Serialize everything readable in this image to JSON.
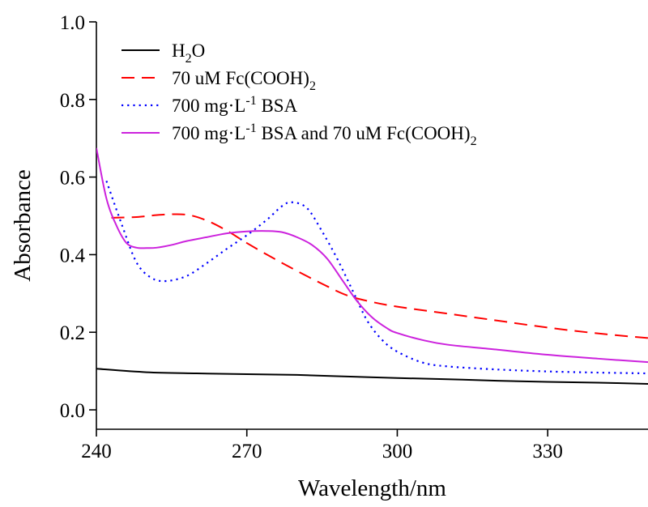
{
  "chart_data": {
    "type": "line",
    "title": "",
    "xlabel": "Wavelength/nm",
    "ylabel": "Absorbance",
    "xlim": [
      240,
      350
    ],
    "ylim": [
      -0.05,
      1.0
    ],
    "xticks": [
      "240",
      "270",
      "300",
      "330"
    ],
    "yticks": [
      "0.0",
      "0.2",
      "0.4",
      "0.6",
      "0.8",
      "1.0"
    ],
    "grid": false,
    "legend_position": "top-left",
    "series": [
      {
        "name": "H2O",
        "legend": {
          "pre": "H",
          "sub": "2",
          "post": "O"
        },
        "color": "#000000",
        "dash": "solid",
        "x": [
          240,
          250,
          260,
          270,
          280,
          290,
          300,
          310,
          320,
          330,
          340,
          350
        ],
        "y": [
          0.106,
          0.097,
          0.094,
          0.092,
          0.09,
          0.086,
          0.082,
          0.079,
          0.075,
          0.072,
          0.07,
          0.067
        ]
      },
      {
        "name": "70 uM Fc(COOH)2",
        "legend": {
          "pre": "70 uM Fc(COOH)",
          "sub": "2",
          "post": ""
        },
        "color": "#ff0000",
        "dash": "dashed",
        "x": [
          243,
          248,
          253,
          258,
          262,
          266,
          270,
          275,
          280,
          285,
          290,
          295,
          300,
          310,
          320,
          330,
          340,
          350
        ],
        "y": [
          0.495,
          0.497,
          0.503,
          0.503,
          0.488,
          0.462,
          0.43,
          0.393,
          0.358,
          0.325,
          0.295,
          0.278,
          0.266,
          0.248,
          0.23,
          0.212,
          0.197,
          0.185
        ]
      },
      {
        "name": "700 mg·L-1 BSA",
        "legend": {
          "pre": "700 mg·L",
          "sup": "-1",
          "post": " BSA"
        },
        "color": "#0000ff",
        "dash": "dotted",
        "x": [
          242,
          245,
          248,
          251,
          254,
          258,
          262,
          266,
          270,
          274,
          277,
          279,
          282,
          285,
          288,
          291,
          294,
          297,
          300,
          305,
          310,
          320,
          330,
          340,
          350
        ],
        "y": [
          0.59,
          0.48,
          0.38,
          0.34,
          0.332,
          0.345,
          0.378,
          0.415,
          0.45,
          0.49,
          0.525,
          0.535,
          0.52,
          0.46,
          0.39,
          0.31,
          0.23,
          0.18,
          0.15,
          0.122,
          0.112,
          0.104,
          0.099,
          0.096,
          0.094
        ]
      },
      {
        "name": "700 mg·L-1 BSA and 70 uM Fc(COOH)2",
        "legend": {
          "pre": "700 mg·L",
          "sup": "-1",
          "mid": " BSA and 70 uM Fc(COOH)",
          "sub": "2",
          "post": ""
        },
        "color": "#cc22dd",
        "dash": "solid",
        "x": [
          240,
          242,
          244,
          246,
          248,
          250,
          252,
          255,
          258,
          262,
          266,
          270,
          274,
          277,
          280,
          283,
          286,
          289,
          292,
          295,
          298,
          300,
          305,
          310,
          320,
          330,
          340,
          350
        ],
        "y": [
          0.675,
          0.545,
          0.475,
          0.43,
          0.418,
          0.417,
          0.418,
          0.425,
          0.435,
          0.445,
          0.455,
          0.46,
          0.461,
          0.458,
          0.445,
          0.425,
          0.39,
          0.335,
          0.28,
          0.238,
          0.21,
          0.198,
          0.18,
          0.168,
          0.155,
          0.142,
          0.132,
          0.123
        ]
      }
    ]
  }
}
